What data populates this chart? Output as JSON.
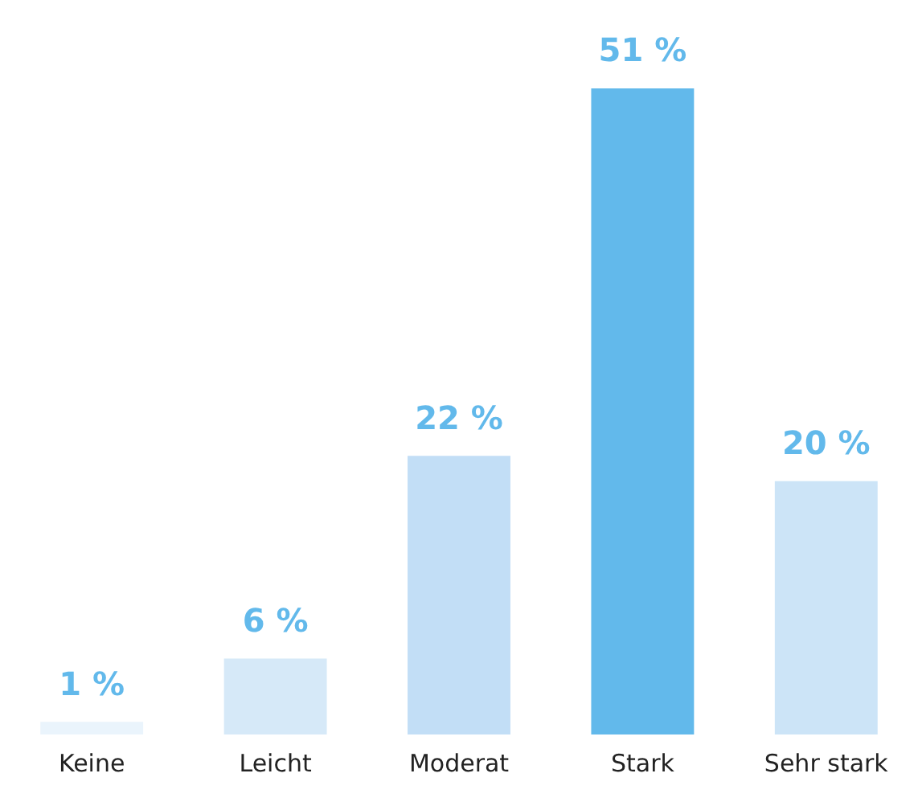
{
  "chart_data": {
    "type": "bar",
    "categories": [
      "Keine",
      "Leicht",
      "Moderat",
      "Stark",
      "Sehr stark"
    ],
    "values": [
      1,
      6,
      22,
      51,
      20
    ],
    "colors": [
      "#eaf4fc",
      "#d6e9f8",
      "#c2def6",
      "#62b9eb",
      "#cce4f7"
    ],
    "value_labels": [
      "1 %",
      "6 %",
      "22 %",
      "51 %",
      "20 %"
    ],
    "grid": false,
    "legend": false
  }
}
